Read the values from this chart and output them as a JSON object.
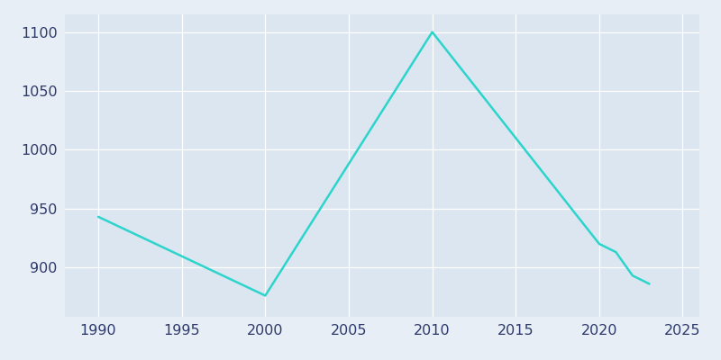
{
  "years": [
    1990,
    2000,
    2010,
    2020,
    2021,
    2022,
    2023
  ],
  "population": [
    943,
    876,
    1100,
    920,
    913,
    893,
    886
  ],
  "line_color": "#2dd4cc",
  "bg_color": "#e8eef5",
  "plot_bg_color": "#dce6f0",
  "xlim": [
    1988,
    2026
  ],
  "ylim": [
    858,
    1115
  ],
  "xticks": [
    1990,
    1995,
    2000,
    2005,
    2010,
    2015,
    2020,
    2025
  ],
  "yticks": [
    900,
    950,
    1000,
    1050,
    1100
  ],
  "grid_color": "#ffffff",
  "tick_label_color": "#2d3a6b",
  "tick_fontsize": 11.5
}
